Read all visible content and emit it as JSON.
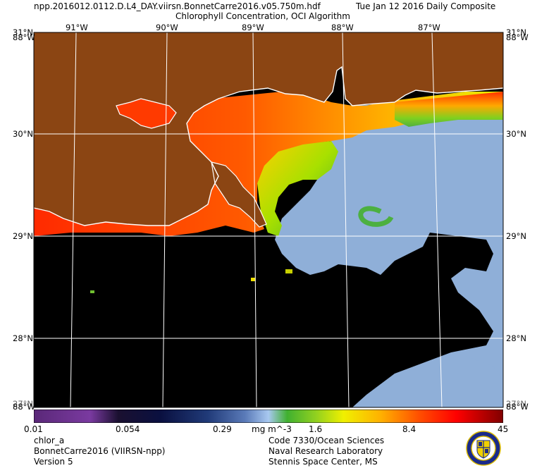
{
  "header": {
    "filename": "npp.2016012.0112.D.L4_DAY.viirsn.BonnetCarre2016.v05.750m.hdf",
    "date": "Tue Jan 12 2016 Daily Composite",
    "product": "Chlorophyll Concentration, OCI Algorithm"
  },
  "map": {
    "lon_labels": [
      "91°W",
      "90°W",
      "89°W",
      "88°W",
      "87°W"
    ],
    "lat_labels": [
      "31°N",
      "30°N",
      "29°N",
      "28°N"
    ],
    "corner_labels": {
      "top_left": "31°N",
      "top_left_overlap": "88°W",
      "top_right": "31°N",
      "top_right_overlap": "88°W",
      "bottom_left": "88°W",
      "bottom_left_overlap": "27°N",
      "bottom_right": "88°W",
      "bottom_right_overlap": "27°N"
    },
    "colors": {
      "land": "#8b4513",
      "nodata": "#000000",
      "low_chl": "#8fafd8",
      "coastline": "#ffffff",
      "grid": "#ffffff"
    }
  },
  "colorbar": {
    "ticks": [
      "0.01",
      "0.054",
      "0.29",
      "1.6",
      "8.4",
      "45"
    ],
    "units": "mg m^-3",
    "scale": "log"
  },
  "footer": {
    "left": [
      "chlor_a",
      "BonnetCarre2016 (VIIRSN-npp)",
      "Version 5"
    ],
    "right": [
      "Code 7330/Ocean Sciences",
      "Naval Research Laboratory",
      "Stennis Space Center, MS"
    ]
  }
}
